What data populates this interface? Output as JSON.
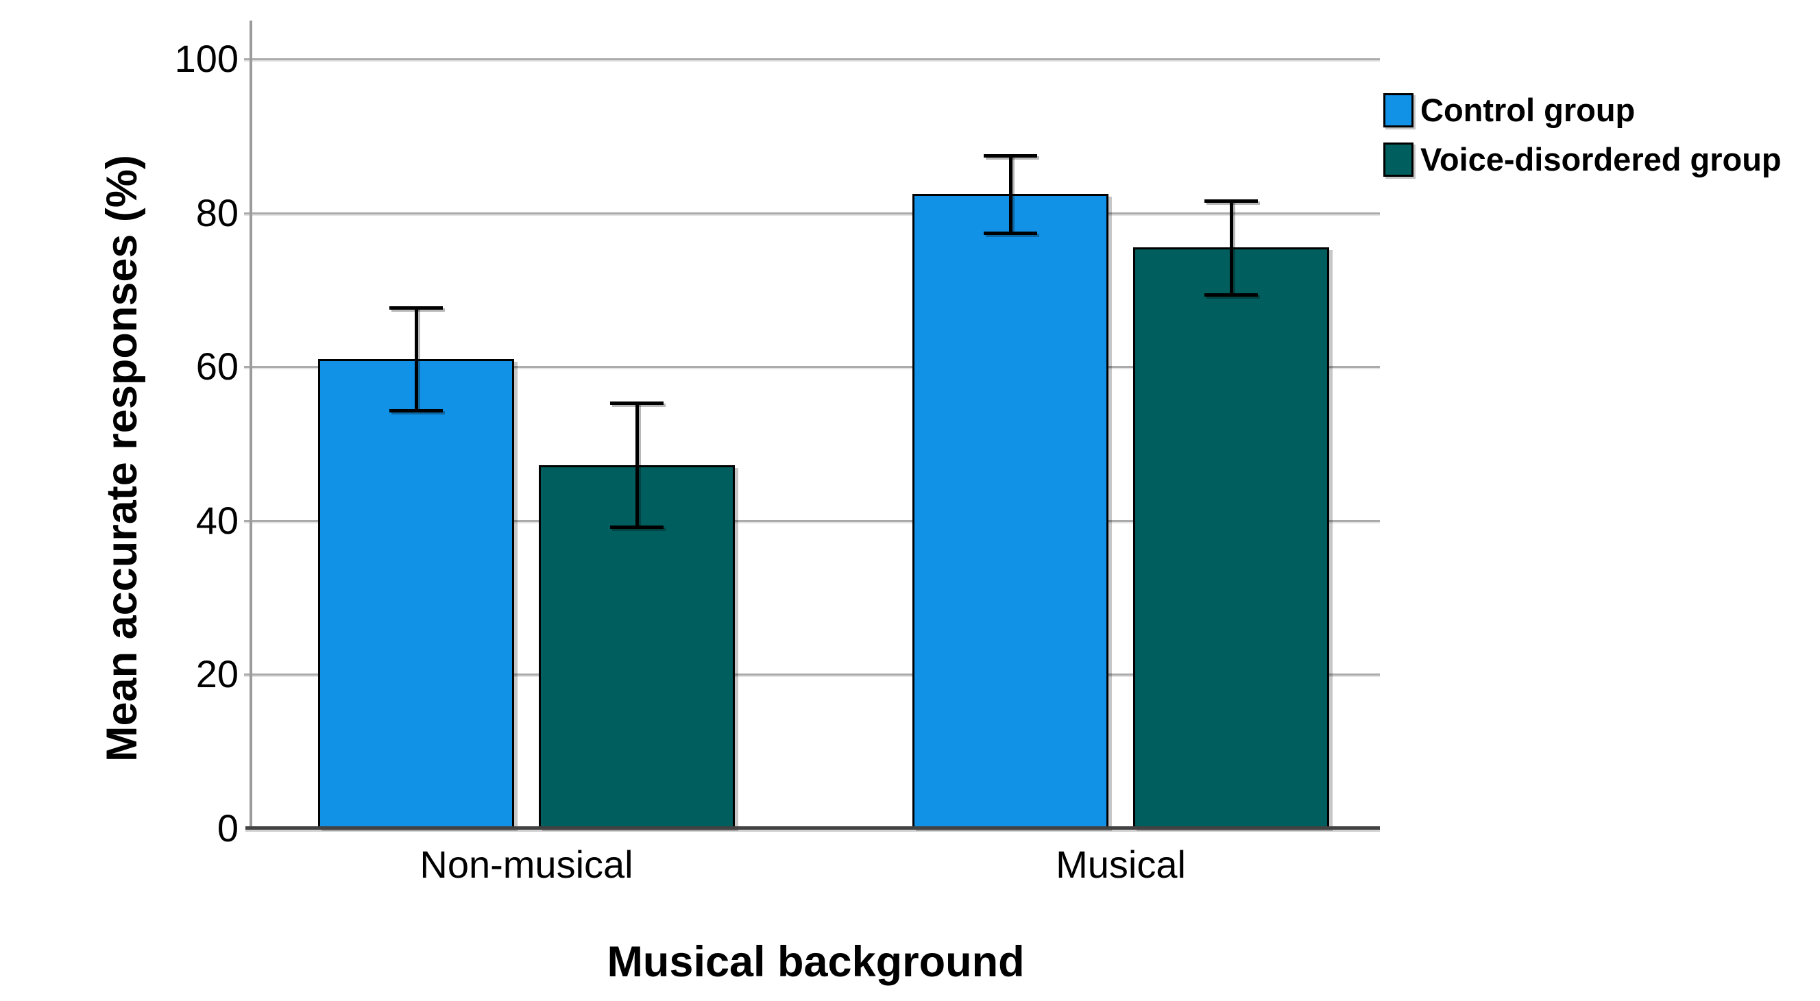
{
  "chart_data": {
    "type": "bar",
    "title": "",
    "xlabel": "Musical background",
    "ylabel": "Mean accurate responses (%)",
    "categories": [
      "Non-musical",
      "Musical"
    ],
    "series": [
      {
        "name": "Control group",
        "color": "#1292E6",
        "values": [
          61.0,
          82.5
        ],
        "error_low": [
          54.3,
          77.4
        ],
        "error_high": [
          67.7,
          87.5
        ]
      },
      {
        "name": "Voice-disordered group",
        "color": "#005E5E",
        "values": [
          47.2,
          75.5
        ],
        "error_low": [
          39.2,
          69.4
        ],
        "error_high": [
          55.3,
          81.6
        ]
      }
    ],
    "ylim": [
      0,
      105
    ],
    "yticks": [
      0,
      20,
      40,
      60,
      80,
      100
    ],
    "grid": true,
    "error_bars": true,
    "legend_position": "top-right",
    "colors": {
      "background": "#FFFFFF",
      "gridline": "#ABABAB",
      "y_axis_line": "#9B9B9B",
      "x_axis_line": "#424242",
      "bar_border": "#000000",
      "text": "#000000"
    }
  }
}
